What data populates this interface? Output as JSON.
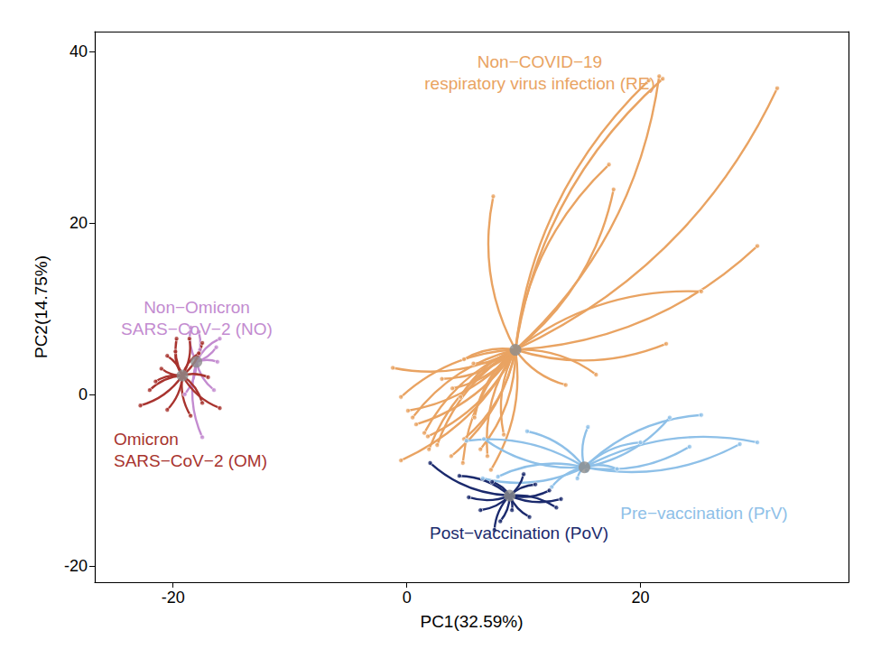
{
  "chart_data": {
    "type": "scatter",
    "xlabel": "PC1(32.59%)",
    "ylabel": "PC2(14.75%)",
    "xlim": [
      -26.7,
      37.8
    ],
    "ylim": [
      -21.9,
      42.3
    ],
    "xticks": [
      -20,
      0,
      20
    ],
    "yticks": [
      -20,
      0,
      20,
      40
    ],
    "grid": false,
    "series": [
      {
        "name": "Non−COVID−19\nrespiratory virus infection (RE)",
        "color": "#E9A362",
        "centroid": [
          9.3,
          5.2
        ],
        "x": [
          20.7,
          21.6,
          21.9,
          31.7,
          17.3,
          17.7,
          7.4,
          30.0,
          25.2,
          22.2,
          16.2,
          13.6,
          -1.2,
          -0.5,
          0.1,
          0.5,
          0.8,
          1.5,
          1.8,
          2.6,
          -0.5,
          1.9,
          3.8,
          4.8,
          4.9,
          5.8,
          6.3,
          6.9,
          7.2,
          8.3,
          3.9,
          4.6,
          3.0,
          4.9,
          5.7
        ],
        "y": [
          36.6,
          37.1,
          36.8,
          35.7,
          26.8,
          23.9,
          23.1,
          17.3,
          12.0,
          5.9,
          2.3,
          1.1,
          3.1,
          -0.3,
          -1.9,
          -2.7,
          -3.5,
          -4.5,
          -4.9,
          -5.9,
          -7.7,
          -6.4,
          -7.2,
          -8.0,
          -5.2,
          -2.7,
          -6.4,
          -7.2,
          -8.8,
          -4.7,
          0.7,
          -0.3,
          1.8,
          4.1,
          3.6
        ]
      },
      {
        "name": "Pre−vaccination (PrV)",
        "color": "#8EC0E8",
        "centroid": [
          15.2,
          -8.5
        ],
        "x": [
          25.2,
          22.5,
          20.0,
          24.2,
          30.0,
          28.5,
          15.5,
          5.1,
          6.6,
          10.3,
          15.4,
          14.6,
          6.5,
          12.4,
          18.0,
          7.8
        ],
        "y": [
          -2.4,
          -2.7,
          -5.6,
          -6.1,
          -5.6,
          -5.8,
          -3.8,
          -5.4,
          -5.2,
          -4.3,
          -8.9,
          -9.8,
          -9.8,
          -10.8,
          -8.7,
          -9.6
        ]
      },
      {
        "name": "Post−vaccination (PoV)",
        "color": "#1B2A6D",
        "centroid": [
          8.8,
          -11.8
        ],
        "x": [
          2.0,
          4.5,
          5.3,
          7.3,
          6.3,
          7.5,
          9.0,
          10.0,
          11.0,
          12.2,
          12.8,
          10.5,
          8.0,
          13.2
        ],
        "y": [
          -8.0,
          -9.5,
          -12.0,
          -10.2,
          -13.5,
          -15.8,
          -13.5,
          -9.3,
          -10.5,
          -11.2,
          -13.2,
          -14.3,
          -14.8,
          -12.2
        ]
      },
      {
        "name": "Non−Omicron\nSARS−CoV−2 (NO)",
        "color": "#C38BD0",
        "centroid": [
          -18.0,
          3.8
        ],
        "x": [
          -18.5,
          -17.8,
          -16.0,
          -16.3,
          -16.2,
          -17.5,
          -19.0,
          -16.5,
          -17.7
        ],
        "y": [
          7.8,
          7.3,
          6.5,
          5.5,
          3.8,
          -5.0,
          0.0,
          0.5,
          5.2
        ]
      },
      {
        "name": "Omicron\nSARS−CoV−2 (OM)",
        "color": "#A8332E",
        "centroid": [
          -19.2,
          2.2
        ],
        "x": [
          -22.8,
          -22.0,
          -21.0,
          -20.5,
          -19.7,
          -18.6,
          -19.8,
          -17.5,
          -17.0,
          -16.0,
          -17.5,
          -18.5,
          -20.5,
          -21.5,
          -17.8
        ],
        "y": [
          -1.3,
          0.5,
          3.0,
          4.5,
          6.5,
          6.5,
          5.0,
          6.0,
          2.0,
          -1.6,
          -1.0,
          -2.5,
          -1.8,
          1.5,
          4.8
        ]
      }
    ]
  }
}
